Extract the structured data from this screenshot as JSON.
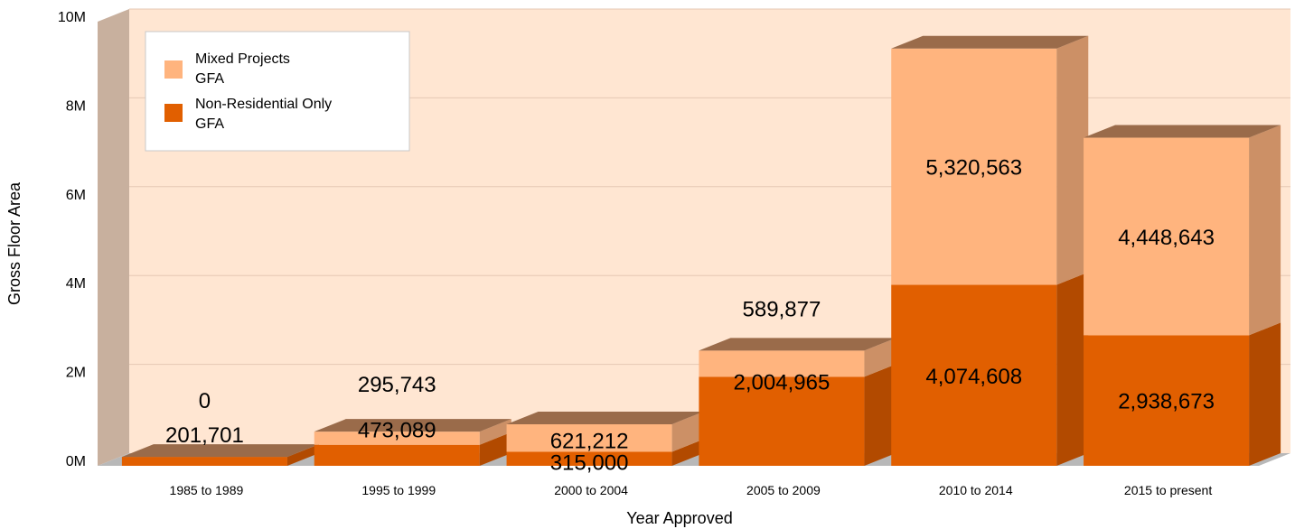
{
  "chart_data": {
    "type": "bar",
    "stacked": true,
    "three_d": true,
    "categories": [
      "1985 to 1989",
      "1995 to 1999",
      "2000 to 2004",
      "2005 to 2009",
      "2010 to 2014",
      "2015 to present"
    ],
    "series": [
      {
        "name": "Non-Residential Only GFA",
        "legend_lines": [
          "Non-Residential Only",
          "GFA"
        ],
        "values": [
          201701,
          473089,
          315000,
          2004965,
          4074608,
          2938673
        ],
        "labels": [
          "201,701",
          "473,089",
          "315,000",
          "2,004,965",
          "4,074,608",
          "2,938,673"
        ],
        "color": "#E15F00",
        "side_color": "#B24A00",
        "top_color": "#9A6B4A"
      },
      {
        "name": "Mixed Projects GFA",
        "legend_lines": [
          "Mixed Projects",
          "GFA"
        ],
        "values": [
          0,
          295743,
          621212,
          589877,
          5320563,
          4448643
        ],
        "labels": [
          "0",
          "295,743",
          "621,212",
          "589,877",
          "5,320,563",
          "4,448,643"
        ],
        "color": "#FFB47E",
        "side_color": "#CC9066",
        "top_color": "#9A6B4A"
      }
    ],
    "xlabel": "Year Approved",
    "ylabel": "Gross Floor Area",
    "ylim": [
      0,
      10000000
    ],
    "y_ticks": [
      0,
      2000000,
      4000000,
      6000000,
      8000000,
      10000000
    ],
    "y_tick_labels": [
      "0M",
      "2M",
      "4M",
      "6M",
      "8M",
      "10M"
    ],
    "grid": true,
    "legend_position": "top-left",
    "colors": {
      "plot_background": "#FFE6D2",
      "left_wall": "#C8B09E",
      "floor": "#B8B8B8",
      "gridline": "#E6C8B4"
    }
  }
}
